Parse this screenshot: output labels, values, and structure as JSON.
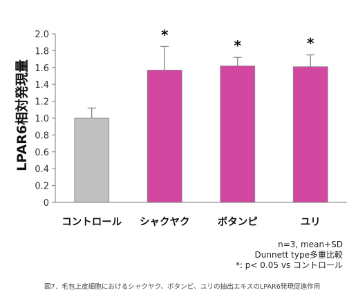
{
  "chart_data": {
    "type": "bar",
    "categories": [
      "コントロール",
      "シャクヤク",
      "ボタンピ",
      "ユリ"
    ],
    "values": [
      1.0,
      1.57,
      1.62,
      1.61
    ],
    "errors": [
      0.12,
      0.28,
      0.1,
      0.14
    ],
    "significance": [
      "",
      "*",
      "*",
      "*"
    ],
    "bar_colors": [
      "#c0c0c0",
      "#d2479f",
      "#d2479f",
      "#d2479f"
    ],
    "ylabel": "LPAR6相対発現量",
    "xlabel": "",
    "ylim": [
      0,
      2.0
    ],
    "yticks": [
      "0",
      "0.2",
      "0.4",
      "0.6",
      "0.8",
      "1.0",
      "1.2",
      "1.4",
      "1.6",
      "1.8",
      "2.0"
    ],
    "grid": false
  },
  "notes": {
    "line1": "n=3, mean+SD",
    "line2": "Dunnett type多重比較",
    "line3": "*: p< 0.05 vs コントロール"
  },
  "caption": "図7．毛包上皮細胞におけるシャクヤク、ボタンピ、ユリの抽出エキスのLPAR6発現促進作用"
}
